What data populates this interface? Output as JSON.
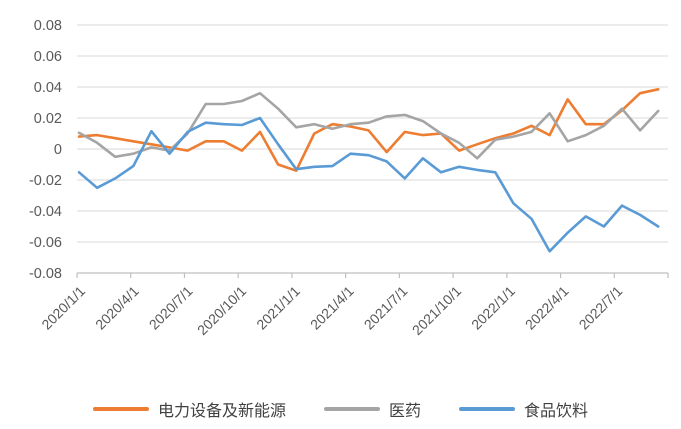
{
  "chart_data": {
    "type": "line",
    "title": "",
    "xlabel": "",
    "ylabel": "",
    "ylim": [
      -0.08,
      0.08
    ],
    "y_tick_step": 0.02,
    "grid": "horizontal",
    "legend_position": "bottom",
    "y_tick_labels": [
      "0.08",
      "0.06",
      "0.04",
      "0.02",
      "0",
      "-0.02",
      "-0.04",
      "-0.06",
      "-0.08"
    ],
    "x_tick_labels": [
      "2020/1/1",
      "2020/4/1",
      "2020/7/1",
      "2020/10/1",
      "2021/1/1",
      "2021/4/1",
      "2021/7/1",
      "2021/10/1",
      "2022/1/1",
      "2022/4/1",
      "2022/7/1"
    ],
    "x_tick_month_index": [
      0,
      3,
      6,
      9,
      12,
      15,
      18,
      21,
      24,
      27,
      30
    ],
    "categories": [
      "2020/1",
      "2020/2",
      "2020/3",
      "2020/4",
      "2020/5",
      "2020/6",
      "2020/7",
      "2020/8",
      "2020/9",
      "2020/10",
      "2020/11",
      "2020/12",
      "2021/1",
      "2021/2",
      "2021/3",
      "2021/4",
      "2021/5",
      "2021/6",
      "2021/7",
      "2021/8",
      "2021/9",
      "2021/10",
      "2021/11",
      "2021/12",
      "2022/1",
      "2022/2",
      "2022/3",
      "2022/4",
      "2022/5",
      "2022/6",
      "2022/7",
      "2022/8",
      "2022/9"
    ],
    "series": [
      {
        "name": "电力设备及新能源",
        "color": "#ED7D31",
        "values": [
          0.008,
          0.009,
          0.007,
          0.005,
          0.003,
          0.001,
          -0.001,
          0.005,
          0.005,
          -0.001,
          0.011,
          -0.01,
          -0.014,
          0.01,
          0.016,
          0.0145,
          0.012,
          -0.002,
          0.011,
          0.009,
          0.01,
          -0.001,
          0.003,
          0.007,
          0.01,
          0.015,
          0.009,
          0.032,
          0.016,
          0.016,
          0.025,
          0.036,
          0.0385
        ]
      },
      {
        "name": "医药",
        "color": "#A5A5A5",
        "values": [
          0.0105,
          0.004,
          -0.005,
          -0.003,
          0.001,
          -0.001,
          0.01,
          0.029,
          0.029,
          0.031,
          0.036,
          0.026,
          0.014,
          0.016,
          0.013,
          0.016,
          0.017,
          0.021,
          0.022,
          0.018,
          0.01,
          0.004,
          -0.006,
          0.006,
          0.008,
          0.011,
          0.023,
          0.005,
          0.009,
          0.015,
          0.026,
          0.012,
          0.0245
        ]
      },
      {
        "name": "食品饮料",
        "color": "#5B9BD5",
        "values": [
          -0.015,
          -0.025,
          -0.019,
          -0.011,
          0.0115,
          -0.003,
          0.011,
          0.017,
          0.016,
          0.0155,
          0.02,
          0.003,
          -0.013,
          -0.0115,
          -0.011,
          -0.003,
          -0.004,
          -0.008,
          -0.019,
          -0.006,
          -0.015,
          -0.0115,
          -0.0135,
          -0.015,
          -0.035,
          -0.045,
          -0.066,
          -0.054,
          -0.0435,
          -0.05,
          -0.0365,
          -0.0425,
          -0.05
        ]
      }
    ]
  },
  "style": {
    "background": "#FFFFFF",
    "gridline_color": "#D9D9D9",
    "axis_color": "#BFBFBF",
    "tick_text_color": "#595959",
    "legend_text_color": "#404040"
  }
}
